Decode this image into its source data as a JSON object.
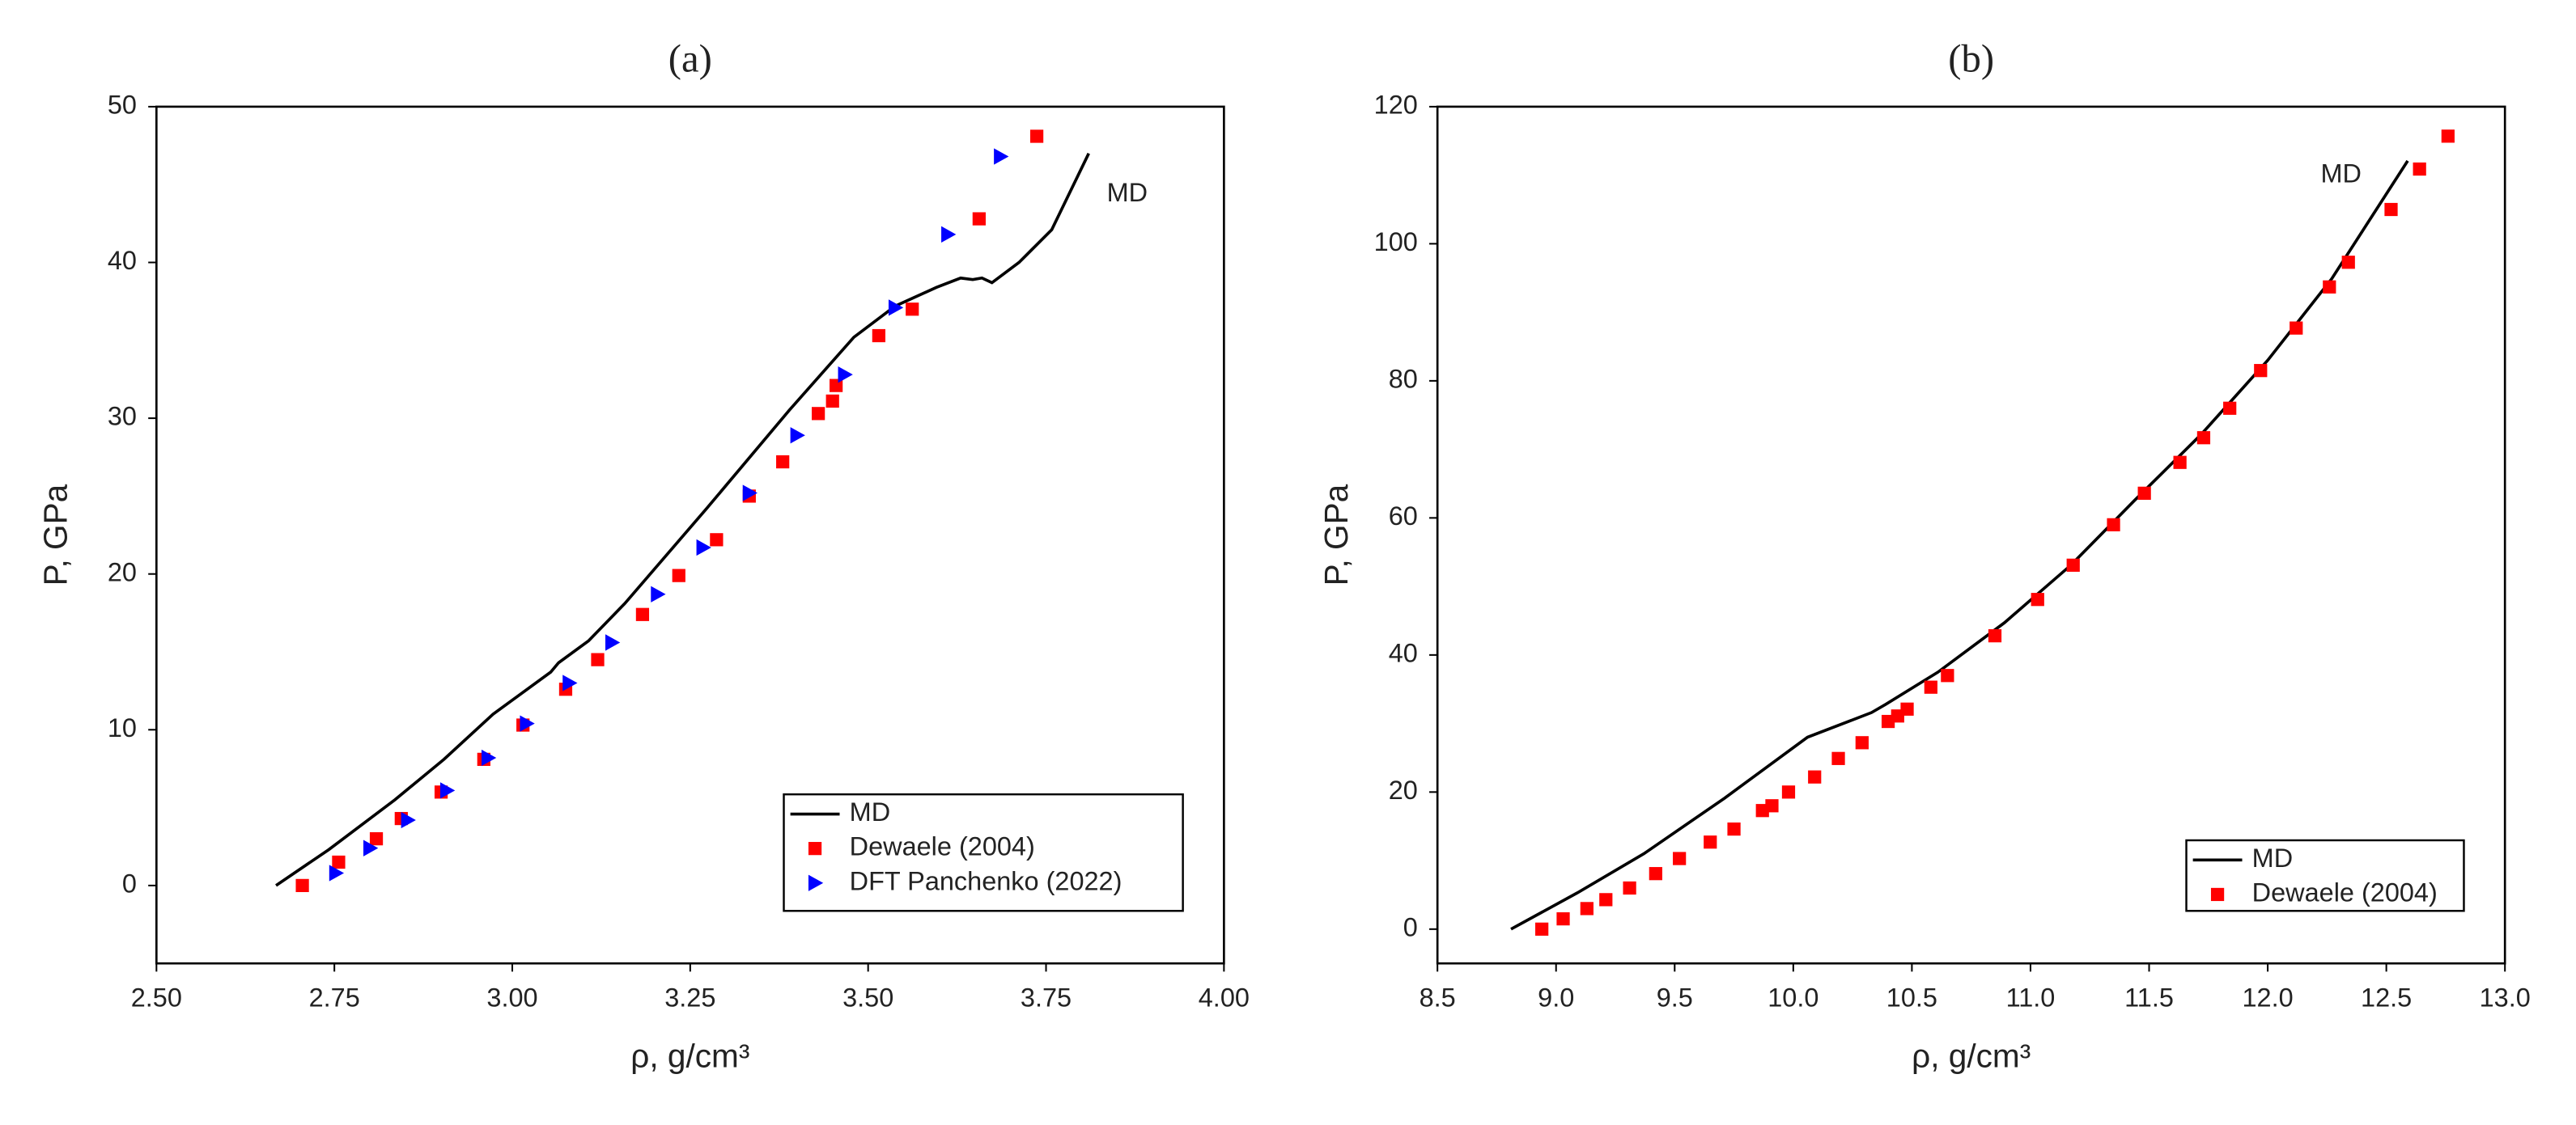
{
  "chart_data": [
    {
      "type": "scatter",
      "title": "(a)",
      "xlabel": "ρ, g/cm³",
      "ylabel": "P, GPa",
      "xlim": [
        2.5,
        4.0
      ],
      "ylim": [
        -5,
        50
      ],
      "xticks": [
        {
          "value": 2.5,
          "label": "2.50"
        },
        2.75,
        {
          "value": 3.0,
          "label": "3.00"
        },
        3.25,
        {
          "value": 3.5,
          "label": "3.50"
        },
        3.75,
        {
          "value": 4.0,
          "label": "4.00"
        }
      ],
      "yticks": [
        0,
        10,
        20,
        30,
        40,
        50
      ],
      "legend": "lower right",
      "annotations": [
        "MD"
      ],
      "series": [
        {
          "name": "MD",
          "mode": "line",
          "color": "#000000",
          "x": [
            2.668,
            2.742,
            2.835,
            2.904,
            2.973,
            3.054,
            3.065,
            3.107,
            3.158,
            3.273,
            3.389,
            3.48,
            3.538,
            3.596,
            3.63,
            3.647,
            3.66,
            3.674,
            3.712,
            3.758,
            3.81
          ],
          "values": [
            0,
            2.3,
            5.5,
            8.1,
            11.0,
            13.7,
            14.3,
            15.7,
            18.1,
            24.2,
            30.5,
            35.2,
            37.2,
            38.4,
            39.0,
            38.9,
            39.0,
            38.7,
            40.0,
            42.1,
            47.0
          ]
        },
        {
          "name": "Dewaele (2004)",
          "mode": "markers",
          "marker": "square",
          "color": "#ff0000",
          "x": [
            2.705,
            2.756,
            2.809,
            2.844,
            2.9,
            2.96,
            3.015,
            3.075,
            3.12,
            3.183,
            3.234,
            3.287,
            3.333,
            3.38,
            3.43,
            3.45,
            3.455,
            3.515,
            3.562,
            3.656,
            3.737
          ],
          "values": [
            0,
            1.5,
            3.0,
            4.3,
            6.0,
            8.1,
            10.3,
            12.6,
            14.5,
            17.4,
            19.9,
            22.2,
            25.0,
            27.2,
            30.3,
            31.1,
            32.1,
            35.3,
            37.0,
            42.8,
            48.1
          ]
        },
        {
          "name": "DFT Panchenko (2022)",
          "mode": "markers",
          "marker": "triangle-right",
          "color": "#0000ff",
          "x": [
            2.752,
            2.8,
            2.853,
            2.908,
            2.966,
            3.02,
            3.08,
            3.14,
            3.204,
            3.268,
            3.333,
            3.4,
            3.467,
            3.538,
            3.612,
            3.686
          ],
          "values": [
            0.8,
            2.4,
            4.2,
            6.1,
            8.2,
            10.4,
            13.0,
            15.6,
            18.7,
            21.7,
            25.2,
            28.9,
            32.8,
            37.1,
            41.8,
            46.8
          ]
        }
      ]
    },
    {
      "type": "scatter",
      "title": "(b)",
      "xlabel": "ρ, g/cm³",
      "ylabel": "P, GPa",
      "xlim": [
        8.5,
        13.0
      ],
      "ylim": [
        -5,
        120
      ],
      "xticks": [
        8.5,
        {
          "value": 9.0,
          "label": "9.0"
        },
        9.5,
        {
          "value": 10.0,
          "label": "10.0"
        },
        10.5,
        {
          "value": 11.0,
          "label": "11.0"
        },
        11.5,
        {
          "value": 12.0,
          "label": "12.0"
        },
        12.5,
        {
          "value": 13.0,
          "label": "13.0"
        }
      ],
      "yticks": [
        0,
        20,
        40,
        60,
        80,
        100,
        120
      ],
      "legend": "lower right",
      "annotations": [
        "MD"
      ],
      "series": [
        {
          "name": "MD",
          "mode": "line",
          "color": "#000000",
          "x": [
            8.81,
            9.09,
            9.37,
            9.71,
            10.06,
            10.33,
            10.39,
            10.61,
            10.89,
            11.17,
            11.44,
            11.72,
            12.0,
            12.27,
            12.59
          ],
          "values": [
            0,
            5.3,
            11.0,
            19.1,
            28.0,
            31.6,
            32.8,
            37.5,
            44.7,
            53.1,
            62.6,
            72.2,
            83.0,
            94.9,
            112.1
          ]
        },
        {
          "name": "Dewaele (2004)",
          "mode": "markers",
          "marker": "square",
          "color": "#ff0000",
          "x": [
            8.94,
            9.03,
            9.13,
            9.21,
            9.31,
            9.42,
            9.52,
            9.65,
            9.75,
            9.87,
            9.91,
            9.98,
            10.09,
            10.19,
            10.29,
            10.4,
            10.44,
            10.48,
            10.58,
            10.65,
            10.85,
            11.03,
            11.18,
            11.35,
            11.48,
            11.63,
            11.73,
            11.84,
            11.97,
            12.12,
            12.26,
            12.34,
            12.52,
            12.64,
            12.76
          ],
          "values": [
            0,
            1.5,
            3.0,
            4.3,
            6.0,
            8.1,
            10.3,
            12.7,
            14.6,
            17.3,
            18.0,
            20.0,
            22.2,
            24.9,
            27.2,
            30.3,
            31.1,
            32.1,
            35.3,
            37.0,
            42.8,
            48.1,
            53.1,
            59.0,
            63.6,
            68.1,
            71.7,
            76.0,
            81.5,
            87.7,
            93.7,
            97.3,
            105.0,
            110.9,
            115.7
          ]
        }
      ]
    }
  ]
}
